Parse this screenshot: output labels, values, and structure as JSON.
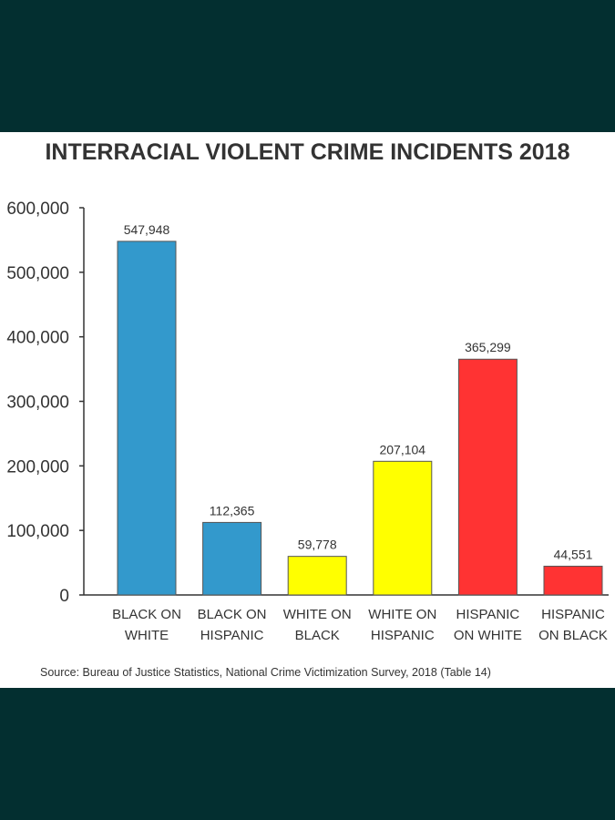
{
  "colors": {
    "frame": "#032f30",
    "panel": "#ffffff",
    "text": "#333333",
    "blue": "#3399cc",
    "yellow": "#ffff00",
    "red": "#ff3333"
  },
  "chart_data": {
    "type": "bar",
    "title": "INTERRACIAL VIOLENT CRIME INCIDENTS 2018",
    "xlabel": "",
    "ylabel": "",
    "ylim": [
      0,
      600000
    ],
    "yticks": [
      "0",
      "100,000",
      "200,000",
      "300,000",
      "400,000",
      "500,000",
      "600,000"
    ],
    "ytick_values": [
      0,
      100000,
      200000,
      300000,
      400000,
      500000,
      600000
    ],
    "grid": false,
    "categories": [
      [
        "BLACK ON",
        "WHITE"
      ],
      [
        "BLACK ON",
        "HISPANIC"
      ],
      [
        "WHITE ON",
        "BLACK"
      ],
      [
        "WHITE ON",
        "HISPANIC"
      ],
      [
        "HISPANIC",
        "ON WHITE"
      ],
      [
        "HISPANIC",
        "ON BLACK"
      ]
    ],
    "values": [
      547948,
      112365,
      59778,
      207104,
      365299,
      44551
    ],
    "value_labels": [
      "547,948",
      "112,365",
      "59,778",
      "207,104",
      "365,299",
      "44,551"
    ],
    "bar_colors": [
      "#3399cc",
      "#3399cc",
      "#ffff00",
      "#ffff00",
      "#ff3333",
      "#ff3333"
    ]
  },
  "source": "Source: Bureau of Justice Statistics, National Crime Victimization Survey, 2018 (Table 14)"
}
